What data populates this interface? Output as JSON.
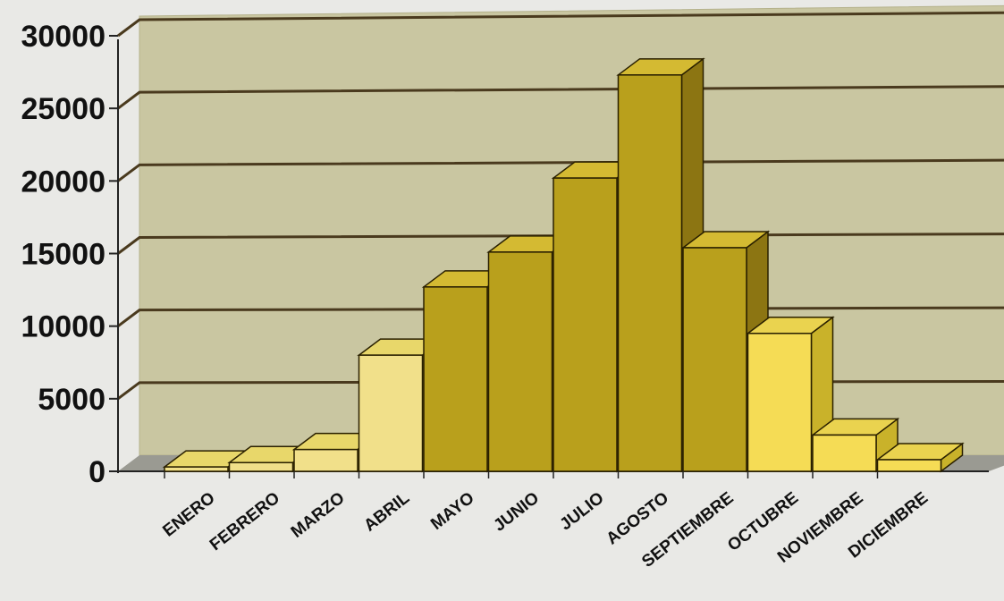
{
  "chart_data": {
    "type": "bar",
    "title": "",
    "xlabel": "",
    "ylabel": "",
    "categories": [
      "ENERO",
      "FEBRERO",
      "MARZO",
      "ABRIL",
      "MAYO",
      "JUNIO",
      "JULIO",
      "AGOSTO",
      "SEPTIEMBRE",
      "OCTUBRE",
      "NOVIEMBRE",
      "DICIEMBRE"
    ],
    "values": [
      300,
      600,
      1500,
      8000,
      12700,
      15100,
      20200,
      27300,
      15400,
      9500,
      2500,
      800
    ],
    "ylim": [
      0,
      30000
    ],
    "yticks": [
      "0",
      "5000",
      "10000",
      "15000",
      "20000",
      "25000",
      "30000"
    ],
    "grid": true,
    "legend": "none",
    "style": "3d-column",
    "colors": {
      "plot_wall": "#c9c6a1",
      "floor": "#9a9a92",
      "gridline": "#4a3a1e",
      "dark_bar_front": "#b9a01c",
      "dark_bar_top": "#d4ba32",
      "dark_bar_side": "#8c7512",
      "light_bar_front": "#f1e08a",
      "light_bar_top": "#e8d76a",
      "light_bar_side": "#cdbd47",
      "mid_bar_front": "#f5dc55",
      "mid_bar_top": "#ead34f",
      "mid_bar_side": "#c9b22a"
    },
    "bar_palette": [
      "light",
      "light",
      "light",
      "light",
      "dark",
      "dark",
      "dark",
      "dark",
      "dark",
      "mid",
      "mid",
      "mid"
    ]
  }
}
